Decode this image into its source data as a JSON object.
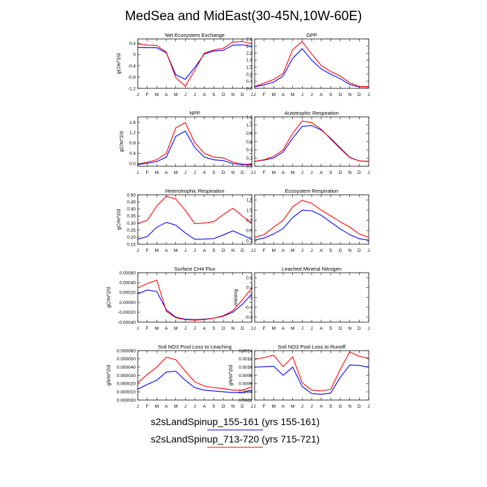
{
  "title": "MedSea and MidEast(30-45N,10W-60E)",
  "months": [
    "J",
    "F",
    "M",
    "A",
    "M",
    "J",
    "J",
    "A",
    "S",
    "O",
    "N",
    "D",
    "J"
  ],
  "colors": {
    "run1": "#0000ff",
    "run2": "#ff0000",
    "axis": "#000000"
  },
  "legend": [
    {
      "label": "s2sLandSpinup_155-161 (yrs 155-161)",
      "color": "#0000ff"
    },
    {
      "label": "s2sLandSpinup_713-720 (yrs 715-721)",
      "color": "#ff0000"
    }
  ],
  "chart_data": [
    {
      "type": "line",
      "title": "Net Ecosystem Exchange",
      "ylabel": "gC/m^2/d",
      "ylim": [
        -1.2,
        0.55
      ],
      "yticks": [
        "0.4",
        "0",
        "-0.4",
        "-0.8",
        "-1.2"
      ],
      "ytick_values": [
        0.4,
        0,
        -0.4,
        -0.8,
        -1.2
      ],
      "categories": [
        "J",
        "F",
        "M",
        "A",
        "M",
        "J",
        "J",
        "A",
        "S",
        "O",
        "N",
        "D",
        "J"
      ],
      "series": [
        {
          "name": "s2sLandSpinup_155-161 (yrs 155-161)",
          "values": [
            0.25,
            0.24,
            0.24,
            0.06,
            -0.72,
            -0.88,
            -0.46,
            0.02,
            0.12,
            0.15,
            0.33,
            0.34,
            0.28
          ]
        },
        {
          "name": "s2sLandSpinup_713-720 (yrs 715-721)",
          "values": [
            0.38,
            0.33,
            0.32,
            0.08,
            -0.82,
            -1.12,
            -0.56,
            0.05,
            0.16,
            0.22,
            0.44,
            0.46,
            0.38
          ]
        }
      ]
    },
    {
      "type": "line",
      "title": "GPP",
      "ylabel": "",
      "ylim": [
        0,
        2.8
      ],
      "yticks": [
        "2.8",
        "2.4",
        "2.0",
        "1.6",
        "1.2",
        "0.8",
        "0.4",
        "0.0"
      ],
      "ytick_values": [
        2.8,
        2.4,
        2.0,
        1.6,
        1.2,
        0.8,
        0.4,
        0.0
      ],
      "categories": [
        "J",
        "F",
        "M",
        "A",
        "M",
        "J",
        "J",
        "A",
        "S",
        "O",
        "N",
        "D",
        "J"
      ],
      "series": [
        {
          "name": "s2sLandSpinup_155-161 (yrs 155-161)",
          "values": [
            0.08,
            0.2,
            0.35,
            0.7,
            1.7,
            2.25,
            1.6,
            1.1,
            0.8,
            0.55,
            0.22,
            0.08,
            0.08
          ]
        },
        {
          "name": "s2sLandSpinup_713-720 (yrs 715-721)",
          "values": [
            0.1,
            0.3,
            0.5,
            0.85,
            2.2,
            2.65,
            1.95,
            1.3,
            0.95,
            0.7,
            0.32,
            0.1,
            0.1
          ]
        }
      ]
    },
    {
      "type": "line",
      "title": "NPP",
      "ylabel": "gC/m^2/d",
      "ylim": [
        -0.1,
        1.8
      ],
      "yticks": [
        "1.6",
        "1.2",
        "0.8",
        "0.4",
        "0.0"
      ],
      "ytick_values": [
        1.6,
        1.2,
        0.8,
        0.4,
        0.0
      ],
      "categories": [
        "J",
        "F",
        "M",
        "A",
        "M",
        "J",
        "J",
        "A",
        "S",
        "O",
        "N",
        "D",
        "J"
      ],
      "series": [
        {
          "name": "s2sLandSpinup_155-161 (yrs 155-161)",
          "values": [
            -0.04,
            0.02,
            0.08,
            0.25,
            1.05,
            1.25,
            0.62,
            0.25,
            0.15,
            0.12,
            0.0,
            -0.04,
            -0.04
          ]
        },
        {
          "name": "s2sLandSpinup_713-720 (yrs 715-721)",
          "values": [
            -0.02,
            0.06,
            0.15,
            0.4,
            1.38,
            1.58,
            0.8,
            0.4,
            0.25,
            0.22,
            0.06,
            -0.02,
            -0.02
          ]
        }
      ]
    },
    {
      "type": "line",
      "title": "Autotrophic Respiration",
      "ylabel": "",
      "ylim": [
        0,
        1.2
      ],
      "yticks": [
        "1.2",
        "1.0",
        "0.8",
        "0.6",
        "0.4",
        "0.2",
        "0.0"
      ],
      "ytick_values": [
        1.2,
        1.0,
        0.8,
        0.6,
        0.4,
        0.2,
        0.0
      ],
      "categories": [
        "J",
        "F",
        "M",
        "A",
        "M",
        "J",
        "J",
        "A",
        "S",
        "O",
        "N",
        "D",
        "J"
      ],
      "series": [
        {
          "name": "s2sLandSpinup_155-161 (yrs 155-161)",
          "values": [
            0.12,
            0.15,
            0.2,
            0.35,
            0.68,
            0.97,
            0.99,
            0.88,
            0.68,
            0.45,
            0.22,
            0.13,
            0.12
          ]
        },
        {
          "name": "s2sLandSpinup_713-720 (yrs 715-721)",
          "values": [
            0.12,
            0.16,
            0.24,
            0.4,
            0.8,
            1.1,
            1.06,
            0.9,
            0.66,
            0.43,
            0.21,
            0.13,
            0.12
          ]
        }
      ]
    },
    {
      "type": "line",
      "title": "Heterotrophic Respiration",
      "ylabel": "gC/m^2/d",
      "ylim": [
        0.15,
        0.5
      ],
      "yticks": [
        "0.50",
        "0.45",
        "0.40",
        "0.35",
        "0.30",
        "0.25",
        "0.20",
        "0.15"
      ],
      "ytick_values": [
        0.5,
        0.45,
        0.4,
        0.35,
        0.3,
        0.25,
        0.2,
        0.15
      ],
      "categories": [
        "J",
        "F",
        "M",
        "A",
        "M",
        "J",
        "J",
        "A",
        "S",
        "O",
        "N",
        "D",
        "J"
      ],
      "series": [
        {
          "name": "s2sLandSpinup_155-161 (yrs 155-161)",
          "values": [
            0.185,
            0.205,
            0.27,
            0.305,
            0.285,
            0.23,
            0.185,
            0.186,
            0.19,
            0.215,
            0.245,
            0.215,
            0.185
          ]
        },
        {
          "name": "s2sLandSpinup_713-720 (yrs 715-721)",
          "values": [
            0.295,
            0.32,
            0.42,
            0.49,
            0.47,
            0.39,
            0.295,
            0.3,
            0.31,
            0.36,
            0.405,
            0.35,
            0.295
          ]
        }
      ]
    },
    {
      "type": "line",
      "title": "Ecosystem Respiration",
      "ylabel": "",
      "ylim": [
        0.2,
        1.65
      ],
      "yticks": [
        "1.5",
        "1.2",
        "0.9",
        "0.6",
        "0.3"
      ],
      "ytick_values": [
        1.5,
        1.2,
        0.9,
        0.6,
        0.3
      ],
      "categories": [
        "J",
        "F",
        "M",
        "A",
        "M",
        "J",
        "J",
        "A",
        "S",
        "O",
        "N",
        "D",
        "J"
      ],
      "series": [
        {
          "name": "s2sLandSpinup_155-161 (yrs 155-161)",
          "values": [
            0.32,
            0.38,
            0.5,
            0.66,
            0.98,
            1.2,
            1.18,
            1.05,
            0.85,
            0.65,
            0.48,
            0.36,
            0.32
          ]
        },
        {
          "name": "s2sLandSpinup_713-720 (yrs 715-721)",
          "values": [
            0.4,
            0.48,
            0.7,
            0.9,
            1.3,
            1.49,
            1.4,
            1.2,
            1.03,
            0.86,
            0.7,
            0.5,
            0.4
          ]
        }
      ]
    },
    {
      "type": "line",
      "title": "Surface CH4 Flux",
      "ylabel": "gC/m^2/d",
      "ylim": [
        -0.0004,
        0.0006
      ],
      "yticks": [
        "0.00060",
        "0.00040",
        "0.00020",
        "0.00000",
        "-0.00020",
        "-0.00040"
      ],
      "ytick_values": [
        0.0006,
        0.0004,
        0.0002,
        0,
        -0.0002,
        -0.0004
      ],
      "categories": [
        "J",
        "F",
        "M",
        "A",
        "M",
        "J",
        "J",
        "A",
        "S",
        "O",
        "N",
        "D",
        "J"
      ],
      "series": [
        {
          "name": "s2sLandSpinup_155-161 (yrs 155-161)",
          "values": [
            0.00017,
            0.00025,
            0.00022,
            -0.00015,
            -0.0003,
            -0.00034,
            -0.00035,
            -0.00034,
            -0.00032,
            -0.00028,
            -0.0002,
            -4e-05,
            0.00017
          ]
        },
        {
          "name": "s2sLandSpinup_713-720 (yrs 715-721)",
          "values": [
            0.00029,
            0.00038,
            0.00045,
            -0.00018,
            -0.00031,
            -0.00035,
            -0.00036,
            -0.00035,
            -0.00032,
            -0.00027,
            -0.00017,
            5e-05,
            0.00029
          ]
        }
      ]
    },
    {
      "type": "line",
      "title": "Leached Mineral Nitrogen",
      "ylabel": "missing",
      "ylim": [
        -1,
        1
      ],
      "yticks": [
        "0.8",
        "0.4",
        "0",
        "-0.4",
        "-0.8"
      ],
      "ytick_values": [
        0.8,
        0.4,
        0,
        -0.4,
        -0.8
      ],
      "categories": [
        "J",
        "F",
        "M",
        "A",
        "M",
        "J",
        "J",
        "A",
        "S",
        "O",
        "N",
        "D",
        "J"
      ],
      "series": []
    },
    {
      "type": "line",
      "title": "Soil NO3 Pool Loss to Leaching",
      "ylabel": "gN/m^2/d",
      "ylim": [
        0,
        6e-05
      ],
      "yticks": [
        "0.000060",
        "0.000050",
        "0.000040",
        "0.000030",
        "0.000020",
        "0.000010",
        "0.000000"
      ],
      "ytick_values": [
        6e-05,
        5e-05,
        4e-05,
        3e-05,
        2e-05,
        1e-05,
        0
      ],
      "categories": [
        "J",
        "F",
        "M",
        "A",
        "M",
        "J",
        "J",
        "A",
        "S",
        "O",
        "N",
        "D",
        "J"
      ],
      "series": [
        {
          "name": "s2sLandSpinup_155-161 (yrs 155-161)",
          "values": [
            1.3e-05,
            1.9e-05,
            2.4e-05,
            3.4e-05,
            3.5e-05,
            2.4e-05,
            1.5e-05,
            1.2e-05,
            1.1e-05,
            1e-05,
            9e-06,
            9e-06,
            1.2e-05
          ]
        },
        {
          "name": "s2sLandSpinup_713-720 (yrs 715-721)",
          "values": [
            2.1e-05,
            3.1e-05,
            4e-05,
            5.2e-05,
            4.9e-05,
            3.5e-05,
            2.2e-05,
            1.7e-05,
            1.5e-05,
            1.4e-05,
            1.2e-05,
            1.2e-05,
            1.6e-05
          ]
        }
      ]
    },
    {
      "type": "line",
      "title": "Soil NO3 Pool Loss to Runoff",
      "ylabel": "gN/m^2/d",
      "ylim": [
        0.0002,
        0.0014
      ],
      "yticks": [
        "0.0014",
        "0.0012",
        "0.0010",
        "0.0008",
        "0.0006",
        "0.0004",
        "0.0002"
      ],
      "ytick_values": [
        0.0014,
        0.0012,
        0.001,
        0.0008,
        0.0006,
        0.0004,
        0.0002
      ],
      "categories": [
        "J",
        "F",
        "M",
        "A",
        "M",
        "J",
        "J",
        "A",
        "S",
        "O",
        "N",
        "D",
        "J"
      ],
      "series": [
        {
          "name": "s2sLandSpinup_155-161 (yrs 155-161)",
          "values": [
            0.001,
            0.00101,
            0.00102,
            0.0008,
            0.001,
            0.00053,
            0.00036,
            0.00034,
            0.00037,
            0.00075,
            0.00105,
            0.00104,
            0.001
          ]
        },
        {
          "name": "s2sLandSpinup_713-720 (yrs 715-721)",
          "values": [
            0.00119,
            0.00123,
            0.00129,
            0.00101,
            0.00125,
            0.00062,
            0.00044,
            0.00042,
            0.00046,
            0.00094,
            0.00137,
            0.00126,
            0.00122
          ]
        }
      ]
    }
  ]
}
